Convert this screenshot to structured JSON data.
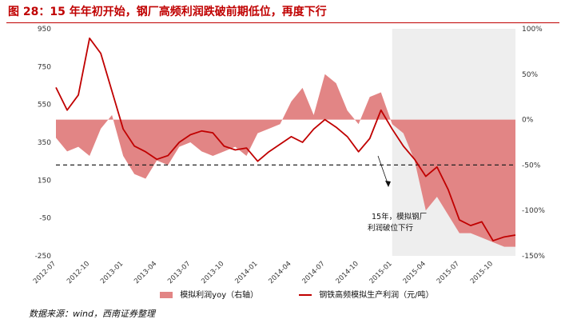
{
  "title": "图 28：15 年年初开始，钢厂高频利润跌破前期低位，再度下行",
  "source": "数据来源：wind，西南证券整理",
  "annotation": [
    "15年，模拟钢厂",
    "利润破位下行"
  ],
  "colors": {
    "line": "#c00000",
    "area": "#e28585",
    "highlight": "#eeeeee",
    "title": "#c00000"
  },
  "chart_data": {
    "type": "line+area",
    "left_axis": {
      "ticks": [
        950,
        750,
        550,
        350,
        150,
        -50,
        -250
      ],
      "ylim": [
        -250,
        950
      ]
    },
    "right_axis": {
      "ticks": [
        "100%",
        "50%",
        "0%",
        "-50%",
        "-100%",
        "-150%"
      ],
      "ylim": [
        -150,
        100
      ]
    },
    "x_ticks": [
      "2012-07",
      "2012-10",
      "2013-01",
      "2013-04",
      "2013-07",
      "2013-10",
      "2014-01",
      "2014-04",
      "2014-07",
      "2014-10",
      "2015-01",
      "2015-04",
      "2015-07",
      "2015-10"
    ],
    "highlight_range": [
      "2015-01",
      "2015-12"
    ],
    "reference_line": {
      "axis": "right",
      "value": -50,
      "style": "dashed"
    },
    "series": [
      {
        "name": "模拟利润yoy（右轴）",
        "type": "area",
        "axis": "right",
        "x": [
          "2012-07",
          "2012-08",
          "2012-09",
          "2012-10",
          "2012-11",
          "2012-12",
          "2013-01",
          "2013-02",
          "2013-03",
          "2013-04",
          "2013-05",
          "2013-06",
          "2013-07",
          "2013-08",
          "2013-09",
          "2013-10",
          "2013-11",
          "2013-12",
          "2014-01",
          "2014-02",
          "2014-03",
          "2014-04",
          "2014-05",
          "2014-06",
          "2014-07",
          "2014-08",
          "2014-09",
          "2014-10",
          "2014-11",
          "2014-12",
          "2015-01",
          "2015-02",
          "2015-03",
          "2015-04",
          "2015-05",
          "2015-06",
          "2015-07",
          "2015-08",
          "2015-09",
          "2015-10",
          "2015-11",
          "2015-12"
        ],
        "values": [
          -20,
          -35,
          -30,
          -40,
          -10,
          5,
          -40,
          -60,
          -65,
          -45,
          -50,
          -30,
          -25,
          -35,
          -40,
          -35,
          -30,
          -40,
          -15,
          -10,
          -5,
          20,
          35,
          5,
          50,
          40,
          10,
          -5,
          25,
          30,
          -5,
          -15,
          -45,
          -100,
          -85,
          -105,
          -125,
          -125,
          -130,
          -135,
          -140,
          -140
        ]
      },
      {
        "name": "钢铁高频模拟生产利润（元/吨）",
        "type": "line",
        "axis": "left",
        "x": [
          "2012-07",
          "2012-08",
          "2012-09",
          "2012-10",
          "2012-11",
          "2012-12",
          "2013-01",
          "2013-02",
          "2013-03",
          "2013-04",
          "2013-05",
          "2013-06",
          "2013-07",
          "2013-08",
          "2013-09",
          "2013-10",
          "2013-11",
          "2013-12",
          "2014-01",
          "2014-02",
          "2014-03",
          "2014-04",
          "2014-05",
          "2014-06",
          "2014-07",
          "2014-08",
          "2014-09",
          "2014-10",
          "2014-11",
          "2014-12",
          "2015-01",
          "2015-02",
          "2015-03",
          "2015-04",
          "2015-05",
          "2015-06",
          "2015-07",
          "2015-08",
          "2015-09",
          "2015-10",
          "2015-11",
          "2015-12"
        ],
        "values": [
          640,
          520,
          600,
          900,
          820,
          620,
          420,
          330,
          300,
          260,
          280,
          350,
          390,
          410,
          400,
          330,
          310,
          320,
          250,
          300,
          340,
          380,
          350,
          420,
          470,
          430,
          380,
          300,
          370,
          520,
          420,
          330,
          260,
          170,
          220,
          100,
          -60,
          -90,
          -70,
          -170,
          -150,
          -140
        ]
      }
    ]
  }
}
